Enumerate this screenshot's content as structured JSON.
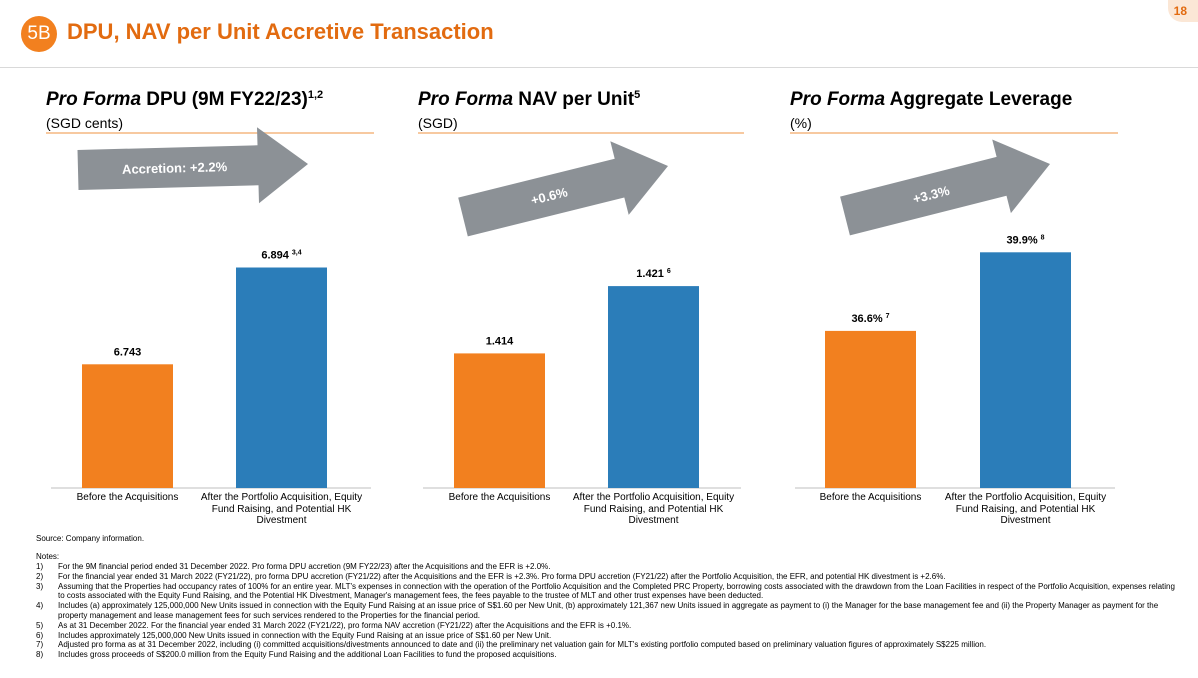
{
  "header": {
    "section_badge": "5B",
    "title": "DPU, NAV per Unit Accretive Transaction",
    "page_number": "18"
  },
  "chart_data": [
    {
      "type": "bar",
      "title_italic": "Pro Forma",
      "title_rest": " DPU (9M FY22/23)",
      "title_sup": "1,2",
      "unit": "(SGD cents)",
      "categories": [
        "Before the Acquisitions",
        "After the Portfolio Acquisition, Equity Fund Raising, and Potential HK Divestment"
      ],
      "values": [
        6.743,
        6.894
      ],
      "value_labels": [
        "6.743",
        "6.894"
      ],
      "label_notes": [
        "",
        "3,4"
      ],
      "bar_colors": [
        "#F2801F",
        "#2B7DB9"
      ],
      "ylim": [
        6.55,
        6.94
      ],
      "arrow_text": "Accretion: +2.2%"
    },
    {
      "type": "bar",
      "title_italic": "Pro Forma",
      "title_rest": " NAV per Unit",
      "title_sup": "5",
      "unit": "(SGD)",
      "categories": [
        "Before the Acquisitions",
        "After the Portfolio Acquisition, Equity Fund Raising, and Potential HK Divestment"
      ],
      "values": [
        1.414,
        1.421
      ],
      "value_labels": [
        "1.414",
        "1.421"
      ],
      "label_notes": [
        "",
        "6"
      ],
      "bar_colors": [
        "#F2801F",
        "#2B7DB9"
      ],
      "ylim": [
        1.4,
        1.426
      ],
      "arrow_text": "+0.6%"
    },
    {
      "type": "bar",
      "title_italic": "Pro Forma",
      "title_rest": " Aggregate Leverage",
      "title_sup": "",
      "unit": "(%)",
      "categories": [
        "Before the Acquisitions",
        "After the Portfolio Acquisition, Equity Fund Raising, and Potential HK Divestment"
      ],
      "values": [
        36.6,
        39.9
      ],
      "value_labels": [
        "36.6%",
        "39.9%"
      ],
      "label_notes": [
        "7",
        "8"
      ],
      "bar_colors": [
        "#F2801F",
        "#2B7DB9"
      ],
      "ylim": [
        30,
        40.5
      ],
      "arrow_text": "+3.3%"
    }
  ],
  "footer": {
    "source": "Source: Company information.",
    "notes_heading": "Notes:",
    "notes": [
      {
        "num": "1)",
        "text": "For the 9M financial period ended 31 December 2022. Pro forma DPU accretion (9M FY22/23) after the Acquisitions and the EFR is +2.0%."
      },
      {
        "num": "2)",
        "text": "For the financial year ended 31 March 2022 (FY21/22), pro forma DPU accretion (FY21/22) after the Acquisitions and the EFR is +2.3%. Pro forma DPU accretion (FY21/22) after the Portfolio Acquisition, the EFR, and potential HK divestment is +2.6%."
      },
      {
        "num": "3)",
        "text": "Assuming that the Properties had occupancy rates of 100% for an entire year. MLT's expenses in connection with the operation of the Portfolio Acquisition and the Completed PRC Property, borrowing costs associated with the drawdown from the Loan Facilities in respect of the Portfolio Acquisition, expenses relating to costs associated with the Equity Fund Raising, and the Potential HK Divestment, Manager's management fees, the fees payable to the trustee of MLT and other trust expenses have been deducted."
      },
      {
        "num": "4)",
        "text": "Includes (a) approximately 125,000,000 New Units issued in connection with the Equity Fund Raising at an issue price of S$1.60 per New Unit, (b) approximately 121,367 new Units issued in aggregate as payment to (i) the Manager for the base management fee and (ii) the Property Manager as payment for the property management and lease management fees for such services rendered to the Properties for the financial period."
      },
      {
        "num": "5)",
        "text": "As at 31 December 2022. For the financial year ended 31 March 2022 (FY21/22), pro forma NAV accretion (FY21/22) after the Acquisitions and the EFR is +0.1%."
      },
      {
        "num": "6)",
        "text": "Includes approximately 125,000,000 New Units issued in connection with the Equity Fund Raising at an issue price of S$1.60 per New Unit."
      },
      {
        "num": "7)",
        "text": "Adjusted pro forma as at 31 December 2022, including (i) committed acquisitions/divestments announced to date and (ii) the preliminary net valuation gain for MLT's existing portfolio computed based on preliminary valuation figures of approximately S$225 million."
      },
      {
        "num": "8)",
        "text": "Includes gross proceeds of S$200.0 million from the Equity Fund Raising and the additional Loan Facilities to fund the proposed acquisitions."
      }
    ]
  }
}
